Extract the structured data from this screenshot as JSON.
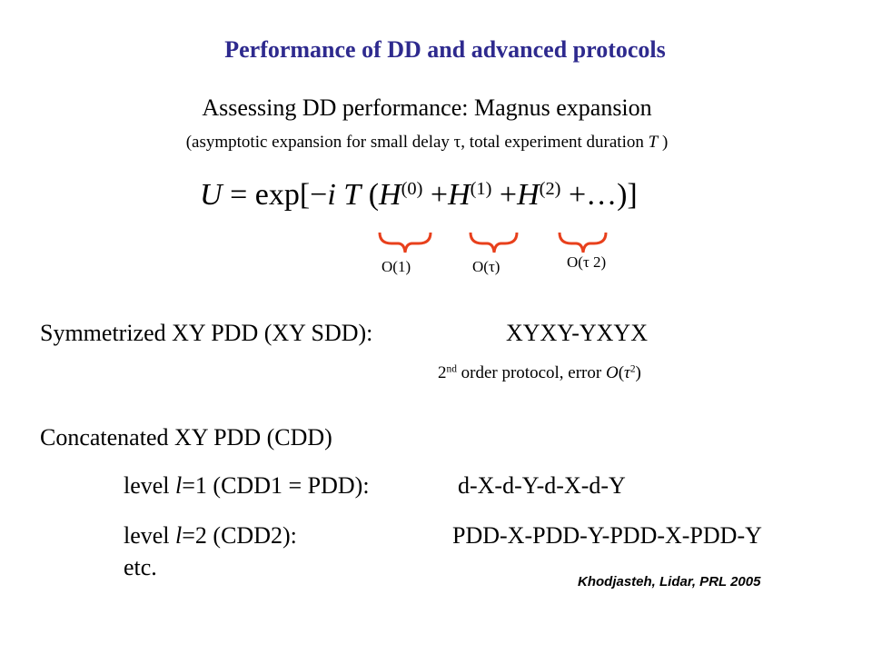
{
  "title": "Performance of DD and advanced protocols",
  "subtitle": "Assessing DD performance: Magnus expansion",
  "note": {
    "prefix": "(asymptotic expansion for small delay τ, total experiment duration ",
    "T": "T",
    "suffix": " )"
  },
  "equation": {
    "lhs": "U",
    "eq_exp": "= exp[−",
    "i": "i",
    "T": "T",
    "open": "(",
    "H": "H",
    "sup0": "(0)",
    "sup1": "(1)",
    "sup2": "(2)",
    "plus": "+",
    "dots": "+…)]",
    "orders": [
      "O(1)",
      "O(τ)",
      "O(τ 2)"
    ]
  },
  "brace_color": "#e8401c",
  "sdd": {
    "label": "Symmetrized XY PDD (XY SDD):",
    "sequence": "XYXY-YXYX",
    "note_pre": "2",
    "note_sup": "nd",
    "note_mid": " order protocol, error ",
    "note_O": "O",
    "note_open": "(",
    "note_tau": "τ",
    "note_exp": "2",
    "note_close": ")"
  },
  "cdd": {
    "heading": "Concatenated XY PDD (CDD)",
    "level1_pre": "level ",
    "level1_l": "l",
    "level1_post": "=1 (CDD1 = PDD):",
    "level1_seq": "d-X-d-Y-d-X-d-Y",
    "level2_pre": "level ",
    "level2_l": "l",
    "level2_post": "=2 (CDD2):",
    "level2_seq": "PDD-X-PDD-Y-PDD-X-PDD-Y",
    "etc": "etc."
  },
  "citation": "Khodjasteh, Lidar, PRL 2005"
}
